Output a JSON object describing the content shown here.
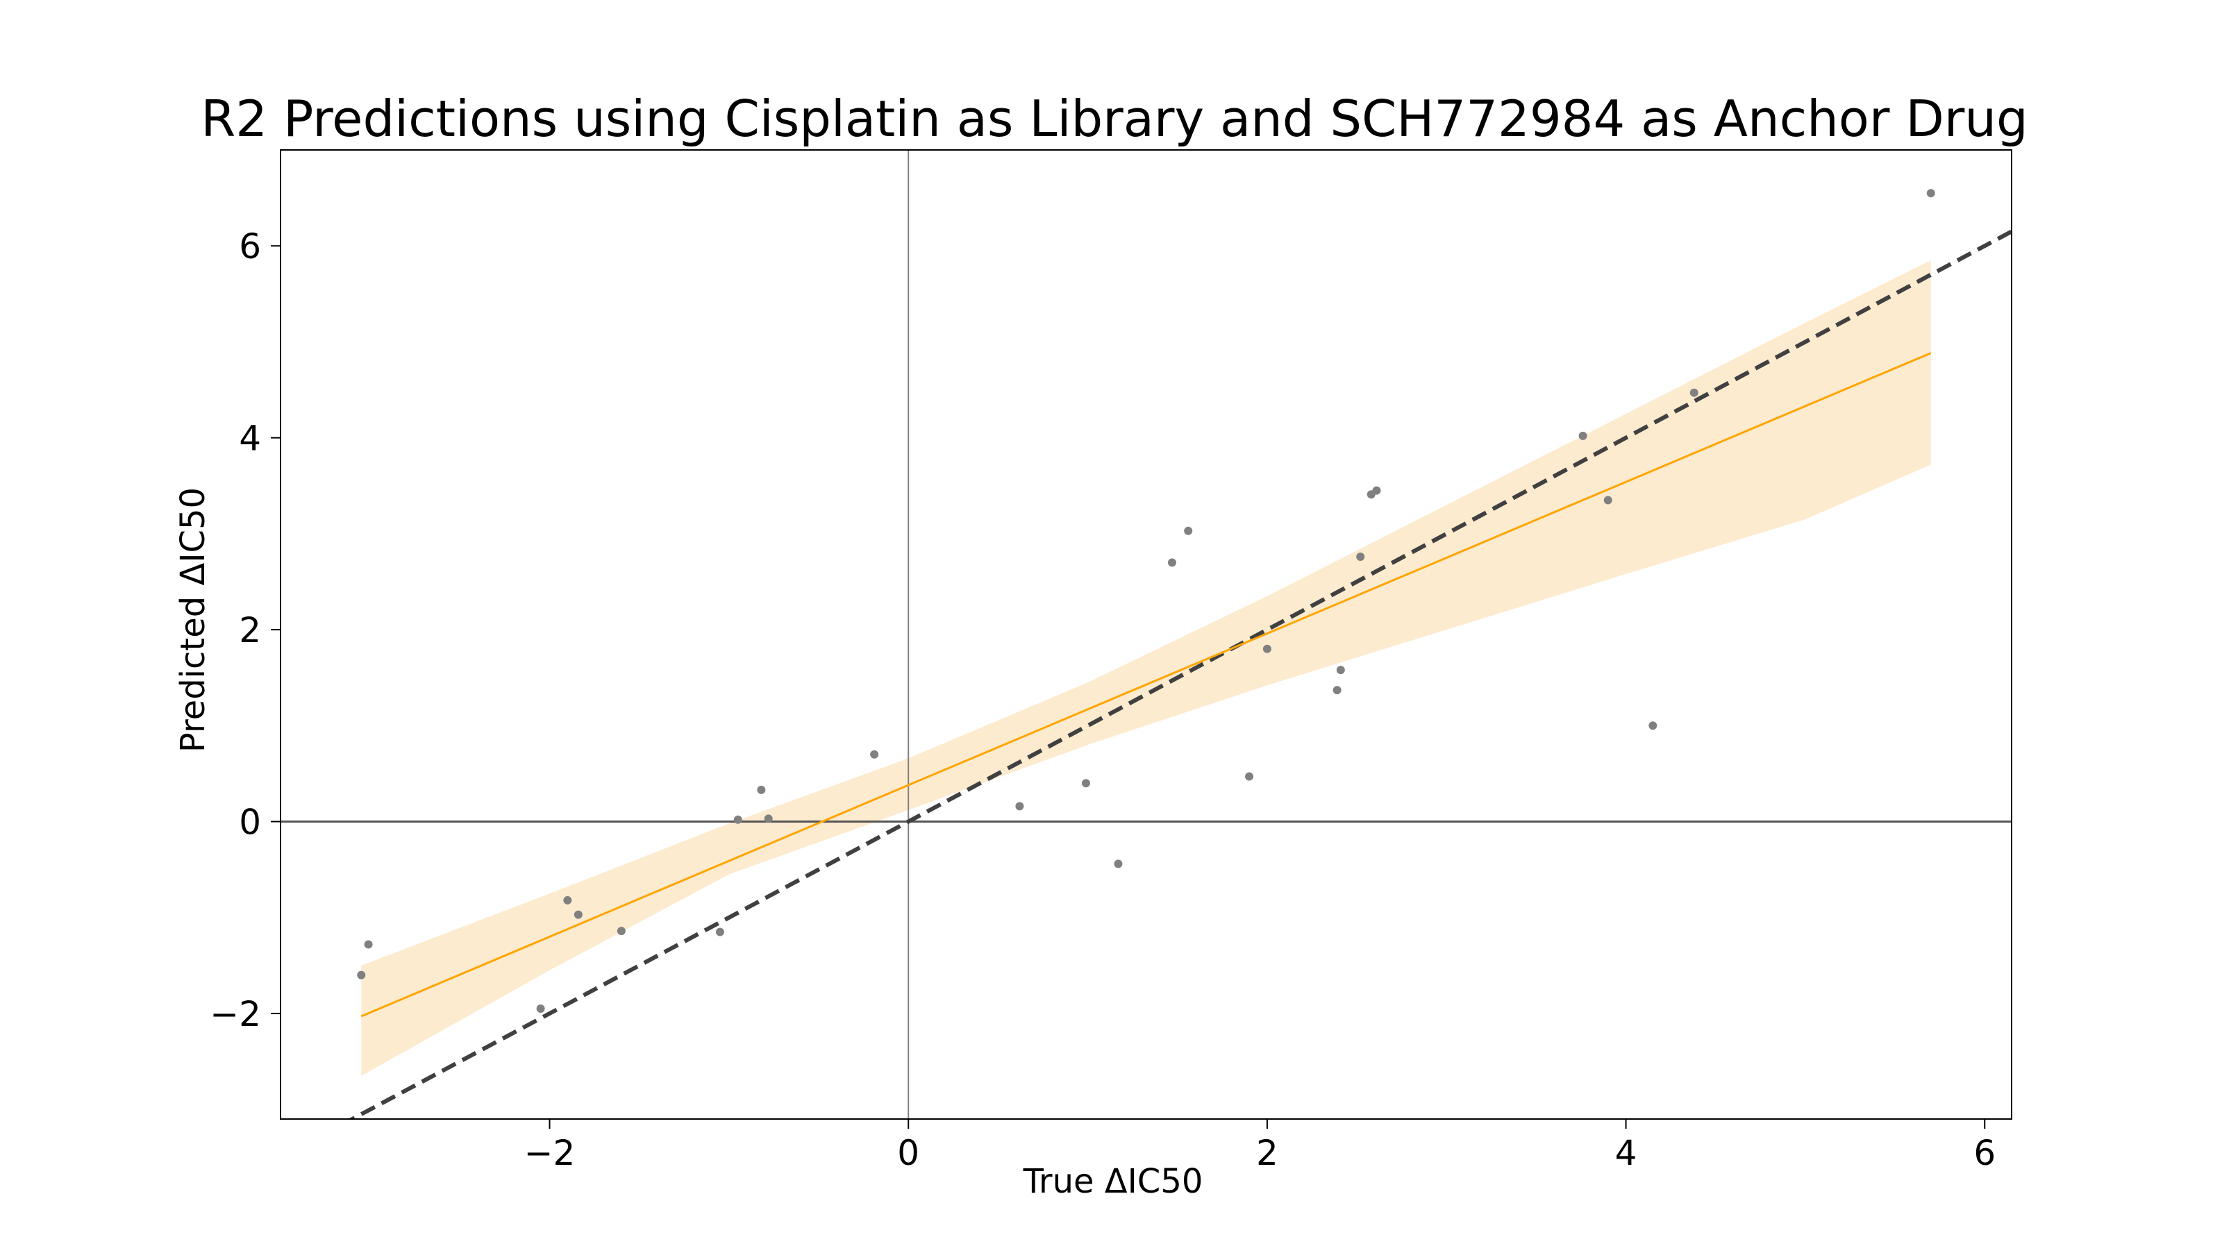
{
  "chart_data": {
    "type": "scatter",
    "title": "R2 Predictions using Cisplatin as Library and SCH772984 as Anchor Drug",
    "xlabel": "True ΔIC50",
    "ylabel": "Predicted ΔIC50",
    "xlim": [
      -3.5,
      6.15
    ],
    "ylim": [
      -3.1,
      7.0
    ],
    "xticks": [
      {
        "value": -2,
        "label": "−2"
      },
      {
        "value": 0,
        "label": "0"
      },
      {
        "value": 2,
        "label": "2"
      },
      {
        "value": 4,
        "label": "4"
      },
      {
        "value": 6,
        "label": "6"
      }
    ],
    "yticks": [
      {
        "value": -2,
        "label": "−2"
      },
      {
        "value": 0,
        "label": "0"
      },
      {
        "value": 2,
        "label": "2"
      },
      {
        "value": 4,
        "label": "4"
      },
      {
        "value": 6,
        "label": "6"
      }
    ],
    "grid": false,
    "reference_lines": {
      "x_zero": true,
      "y_zero": true,
      "identity_dashed": true
    },
    "points": [
      {
        "x": -3.05,
        "y": -1.6
      },
      {
        "x": -3.01,
        "y": -1.28
      },
      {
        "x": -2.05,
        "y": -1.95
      },
      {
        "x": -1.9,
        "y": -0.82
      },
      {
        "x": -1.84,
        "y": -0.97
      },
      {
        "x": -1.6,
        "y": -1.14
      },
      {
        "x": -1.05,
        "y": -1.15
      },
      {
        "x": -0.95,
        "y": 0.02
      },
      {
        "x": -0.82,
        "y": 0.33
      },
      {
        "x": -0.78,
        "y": 0.03
      },
      {
        "x": -0.19,
        "y": 0.7
      },
      {
        "x": 0.62,
        "y": 0.16
      },
      {
        "x": 0.99,
        "y": 0.4
      },
      {
        "x": 1.17,
        "y": -0.44
      },
      {
        "x": 1.47,
        "y": 2.7
      },
      {
        "x": 1.56,
        "y": 3.03
      },
      {
        "x": 1.9,
        "y": 0.47
      },
      {
        "x": 2.0,
        "y": 1.8
      },
      {
        "x": 2.39,
        "y": 1.37
      },
      {
        "x": 2.41,
        "y": 1.58
      },
      {
        "x": 2.52,
        "y": 2.76
      },
      {
        "x": 2.58,
        "y": 3.41
      },
      {
        "x": 2.61,
        "y": 3.45
      },
      {
        "x": 3.76,
        "y": 4.02
      },
      {
        "x": 3.9,
        "y": 3.35
      },
      {
        "x": 4.15,
        "y": 1.0
      },
      {
        "x": 4.38,
        "y": 4.47
      },
      {
        "x": 5.7,
        "y": 6.55
      }
    ],
    "regression": {
      "x_range": [
        -3.05,
        5.7
      ],
      "intercept": 0.38,
      "slope": 0.79,
      "ci_band": [
        {
          "x": -3.05,
          "lower": -2.65,
          "upper": -1.5
        },
        {
          "x": -2.0,
          "lower": -1.55,
          "upper": -0.75
        },
        {
          "x": -1.0,
          "lower": -0.55,
          "upper": -0.02
        },
        {
          "x": 0.0,
          "lower": 0.12,
          "upper": 0.66
        },
        {
          "x": 1.0,
          "lower": 0.8,
          "upper": 1.45
        },
        {
          "x": 2.0,
          "lower": 1.42,
          "upper": 2.35
        },
        {
          "x": 3.0,
          "lower": 2.0,
          "upper": 3.3
        },
        {
          "x": 4.0,
          "lower": 2.58,
          "upper": 4.25
        },
        {
          "x": 5.0,
          "lower": 3.15,
          "upper": 5.2
        },
        {
          "x": 5.7,
          "lower": 3.72,
          "upper": 5.85
        }
      ]
    },
    "colors": {
      "points": "#808080",
      "regression_line": "#ffa500",
      "ci_band": "#fdebd0",
      "identity_line": "#404040",
      "zero_lines": "#808080",
      "axes": "#000000"
    }
  }
}
